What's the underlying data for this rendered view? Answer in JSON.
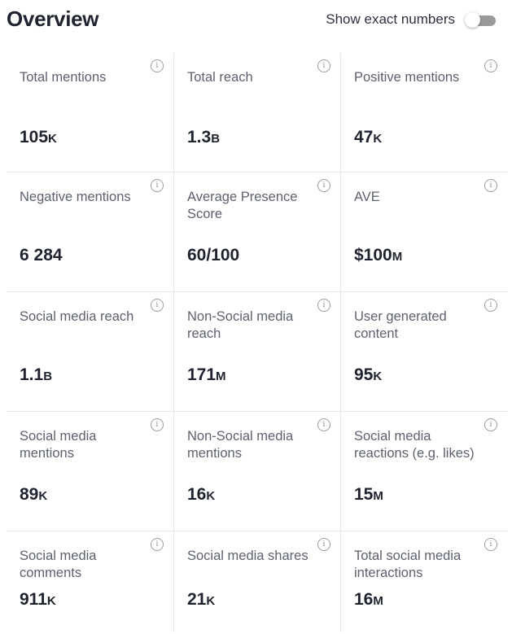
{
  "header": {
    "title": "Overview",
    "toggle_label": "Show exact numbers",
    "toggle_on": false
  },
  "rows": [
    [
      {
        "label": "Total mentions",
        "value": "105",
        "unit": "K"
      },
      {
        "label": "Total reach",
        "value": "1.3",
        "unit": "B"
      },
      {
        "label": "Positive mentions",
        "value": "47",
        "unit": "K"
      }
    ],
    [
      {
        "label": "Negative mentions",
        "value": "6 284",
        "unit": ""
      },
      {
        "label": "Average Presence Score",
        "value": "60/100",
        "unit": ""
      },
      {
        "label": "AVE",
        "value": "$100",
        "unit": "M"
      }
    ],
    [
      {
        "label": "Social media reach",
        "value": "1.1",
        "unit": "B"
      },
      {
        "label": "Non-Social media reach",
        "value": "171",
        "unit": "M"
      },
      {
        "label": "User generated content",
        "value": "95",
        "unit": "K"
      }
    ],
    [
      {
        "label": "Social media mentions",
        "value": "89",
        "unit": "K"
      },
      {
        "label": "Non-Social media mentions",
        "value": "16",
        "unit": "K"
      },
      {
        "label": "Social media reactions (e.g. likes)",
        "value": "15",
        "unit": "M"
      }
    ],
    [
      {
        "label": "Social media comments",
        "value": "911",
        "unit": "K"
      },
      {
        "label": "Social media shares",
        "value": "21",
        "unit": "K"
      },
      {
        "label": "Total social media interactions",
        "value": "16",
        "unit": "M"
      }
    ]
  ]
}
